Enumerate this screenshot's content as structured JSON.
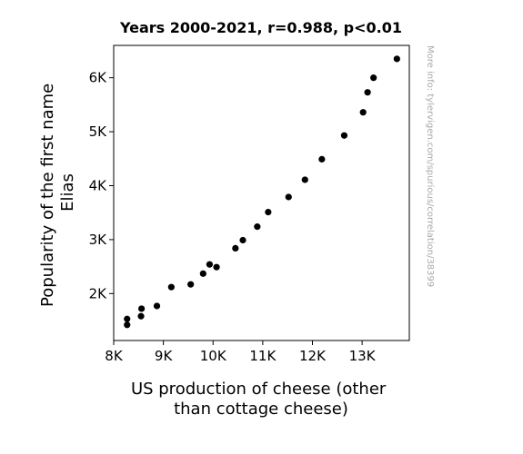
{
  "chart_data": {
    "type": "scatter",
    "title": "Years 2000-2021, r=0.988, p<0.01",
    "xlabel_lines": [
      "US production of cheese (other",
      "than cottage cheese)"
    ],
    "ylabel_lines": [
      "Popularity of the first name",
      "Elias"
    ],
    "xlim": [
      8000,
      13950
    ],
    "ylim": [
      1130,
      6600
    ],
    "xticks": [
      {
        "value": 8000,
        "label": "8K"
      },
      {
        "value": 9000,
        "label": "9K"
      },
      {
        "value": 10000,
        "label": "10K"
      },
      {
        "value": 11000,
        "label": "11K"
      },
      {
        "value": 12000,
        "label": "12K"
      },
      {
        "value": 13000,
        "label": "13K"
      }
    ],
    "yticks": [
      {
        "value": 2000,
        "label": "2K"
      },
      {
        "value": 3000,
        "label": "3K"
      },
      {
        "value": 4000,
        "label": "4K"
      },
      {
        "value": 5000,
        "label": "5K"
      },
      {
        "value": 6000,
        "label": "6K"
      }
    ],
    "points": [
      {
        "x": 8270,
        "y": 1420
      },
      {
        "x": 8270,
        "y": 1530
      },
      {
        "x": 8550,
        "y": 1580
      },
      {
        "x": 8560,
        "y": 1720
      },
      {
        "x": 8870,
        "y": 1770
      },
      {
        "x": 9160,
        "y": 2120
      },
      {
        "x": 9550,
        "y": 2170
      },
      {
        "x": 9800,
        "y": 2370
      },
      {
        "x": 9930,
        "y": 2540
      },
      {
        "x": 10070,
        "y": 2490
      },
      {
        "x": 10450,
        "y": 2840
      },
      {
        "x": 10600,
        "y": 2990
      },
      {
        "x": 10890,
        "y": 3240
      },
      {
        "x": 11110,
        "y": 3510
      },
      {
        "x": 11520,
        "y": 3790
      },
      {
        "x": 11850,
        "y": 4110
      },
      {
        "x": 12190,
        "y": 4490
      },
      {
        "x": 12640,
        "y": 4930
      },
      {
        "x": 13020,
        "y": 5360
      },
      {
        "x": 13110,
        "y": 5730
      },
      {
        "x": 13230,
        "y": 6000
      },
      {
        "x": 13700,
        "y": 6350
      }
    ],
    "marker_color": "#000000",
    "grid": false,
    "legend": "none"
  },
  "watermark": "More info: tylervigen.com/spurious/correlation/38399"
}
